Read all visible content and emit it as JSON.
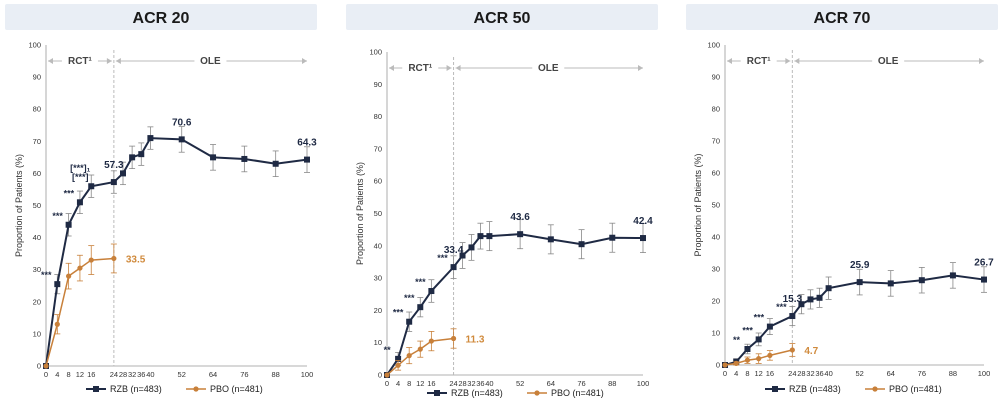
{
  "colors": {
    "rzb": "#1f2a44",
    "pbo": "#c8803a",
    "pbo_label": "#d08a3c",
    "rzb_label": "#1f2a44",
    "title_bg": "#e9eef5",
    "error_bar": "#888888",
    "phase_line": "#bbbbbb"
  },
  "phases": {
    "rct": "RCT¹",
    "ole": "OLE"
  },
  "ylabel": "Proportion of Patients (%)",
  "chart_data": [
    {
      "type": "line",
      "title": "ACR 20",
      "ylabel": "Proportion of Patients (%)",
      "ylim": [
        0,
        100
      ],
      "yticks": [
        0,
        10,
        20,
        30,
        40,
        50,
        60,
        70,
        80,
        90,
        100
      ],
      "xticks": [
        0,
        4,
        8,
        12,
        16,
        24,
        28,
        32,
        36,
        40,
        52,
        64,
        76,
        88,
        100
      ],
      "rct_end_week": 24,
      "series": [
        {
          "name": "RZB (n=483)",
          "x": [
            0,
            4,
            8,
            12,
            16,
            24,
            28,
            32,
            36,
            40,
            52,
            64,
            76,
            88,
            100
          ],
          "values": [
            0,
            25.5,
            44,
            51,
            56,
            57.3,
            60,
            65,
            66,
            71,
            70.6,
            65,
            64.5,
            63,
            64.3
          ],
          "errors": [
            0,
            3,
            3.5,
            3.5,
            3.5,
            3.5,
            3.5,
            3.5,
            3.5,
            3.5,
            4,
            4,
            4,
            4,
            4
          ]
        },
        {
          "name": "PBO (n=481)",
          "x": [
            0,
            4,
            8,
            12,
            16,
            24
          ],
          "values": [
            0,
            13,
            28,
            30.5,
            33,
            33.5
          ],
          "errors": [
            0,
            3,
            4,
            4,
            4.5,
            4.5
          ]
        }
      ],
      "labels": [
        {
          "series": "RZB",
          "x": 24,
          "text": "57.3"
        },
        {
          "series": "RZB",
          "x": 52,
          "text": "70.6"
        },
        {
          "series": "RZB",
          "x": 100,
          "text": "64.3"
        },
        {
          "series": "PBO",
          "x": 24,
          "text": "33.5"
        }
      ],
      "sig_marks": [
        {
          "x": 4,
          "text": "***"
        },
        {
          "x": 8,
          "text": "***"
        },
        {
          "x": 12,
          "text": "***"
        },
        {
          "x": 16,
          "text": "[***]"
        },
        {
          "x": 16,
          "text": "[***]₁"
        }
      ]
    },
    {
      "type": "line",
      "title": "ACR 50",
      "ylabel": "Proportion of Patients (%)",
      "ylim": [
        0,
        100
      ],
      "yticks": [
        0,
        10,
        20,
        30,
        40,
        50,
        60,
        70,
        80,
        90,
        100
      ],
      "xticks": [
        0,
        4,
        8,
        12,
        16,
        24,
        28,
        32,
        36,
        40,
        52,
        64,
        76,
        88,
        100
      ],
      "rct_end_week": 24,
      "series": [
        {
          "name": "RZB (n=483)",
          "x": [
            0,
            4,
            8,
            12,
            16,
            24,
            28,
            32,
            36,
            40,
            52,
            64,
            76,
            88,
            100
          ],
          "values": [
            0,
            5,
            16.5,
            21,
            26,
            33.4,
            37,
            39.5,
            43,
            43,
            43.6,
            42,
            40.5,
            42.5,
            42.4
          ],
          "errors": [
            0,
            2,
            3,
            3,
            3.5,
            3.5,
            4,
            4,
            4,
            4.5,
            4.5,
            4.5,
            4.5,
            4.5,
            4.5
          ]
        },
        {
          "name": "PBO (n=481)",
          "x": [
            0,
            4,
            8,
            12,
            16,
            24
          ],
          "values": [
            0,
            3,
            6,
            8,
            10.5,
            11.3
          ],
          "errors": [
            0,
            1.5,
            2.5,
            2.5,
            3,
            3
          ]
        }
      ],
      "labels": [
        {
          "series": "RZB",
          "x": 24,
          "text": "33.4"
        },
        {
          "series": "RZB",
          "x": 52,
          "text": "43.6"
        },
        {
          "series": "RZB",
          "x": 100,
          "text": "42.4"
        },
        {
          "series": "PBO",
          "x": 24,
          "text": "11.3"
        }
      ],
      "sig_marks": [
        {
          "x": 4,
          "text": "**"
        },
        {
          "x": 8,
          "text": "***"
        },
        {
          "x": 12,
          "text": "***"
        },
        {
          "x": 16,
          "text": "***"
        },
        {
          "x": 24,
          "text": "***"
        }
      ]
    },
    {
      "type": "line",
      "title": "ACR 70",
      "ylabel": "Proportion of Patients (%)",
      "ylim": [
        0,
        100
      ],
      "yticks": [
        0,
        10,
        20,
        30,
        40,
        50,
        60,
        70,
        80,
        90,
        100
      ],
      "xticks": [
        0,
        4,
        8,
        12,
        16,
        24,
        28,
        32,
        36,
        40,
        52,
        64,
        76,
        88,
        100
      ],
      "rct_end_week": 24,
      "series": [
        {
          "name": "RZB (n=483)",
          "x": [
            0,
            4,
            8,
            12,
            16,
            24,
            28,
            32,
            36,
            40,
            52,
            64,
            76,
            88,
            100
          ],
          "values": [
            0,
            1,
            5,
            8,
            12,
            15.3,
            19,
            20.5,
            21,
            24,
            25.9,
            25.5,
            26.5,
            28,
            26.7
          ],
          "errors": [
            0,
            1,
            1.5,
            2,
            2.5,
            3,
            3,
            3,
            3,
            3.5,
            4,
            4,
            4,
            4,
            4
          ]
        },
        {
          "name": "PBO (n=481)",
          "x": [
            0,
            4,
            8,
            12,
            16,
            24
          ],
          "values": [
            0,
            0.5,
            1.5,
            2,
            3,
            4.7
          ],
          "errors": [
            0,
            0.5,
            1,
            1.5,
            1.5,
            2
          ]
        }
      ],
      "labels": [
        {
          "series": "RZB",
          "x": 24,
          "text": "15.3"
        },
        {
          "series": "RZB",
          "x": 52,
          "text": "25.9"
        },
        {
          "series": "RZB",
          "x": 100,
          "text": "26.7"
        },
        {
          "series": "PBO",
          "x": 24,
          "text": "4.7"
        }
      ],
      "sig_marks": [
        {
          "x": 8,
          "text": "**"
        },
        {
          "x": 12,
          "text": "***"
        },
        {
          "x": 16,
          "text": "***"
        },
        {
          "x": 24,
          "text": "***"
        }
      ]
    }
  ],
  "legend": [
    {
      "key": "rzb",
      "label": "RZB (n=483)"
    },
    {
      "key": "pbo",
      "label": "PBO (n=481)"
    }
  ]
}
